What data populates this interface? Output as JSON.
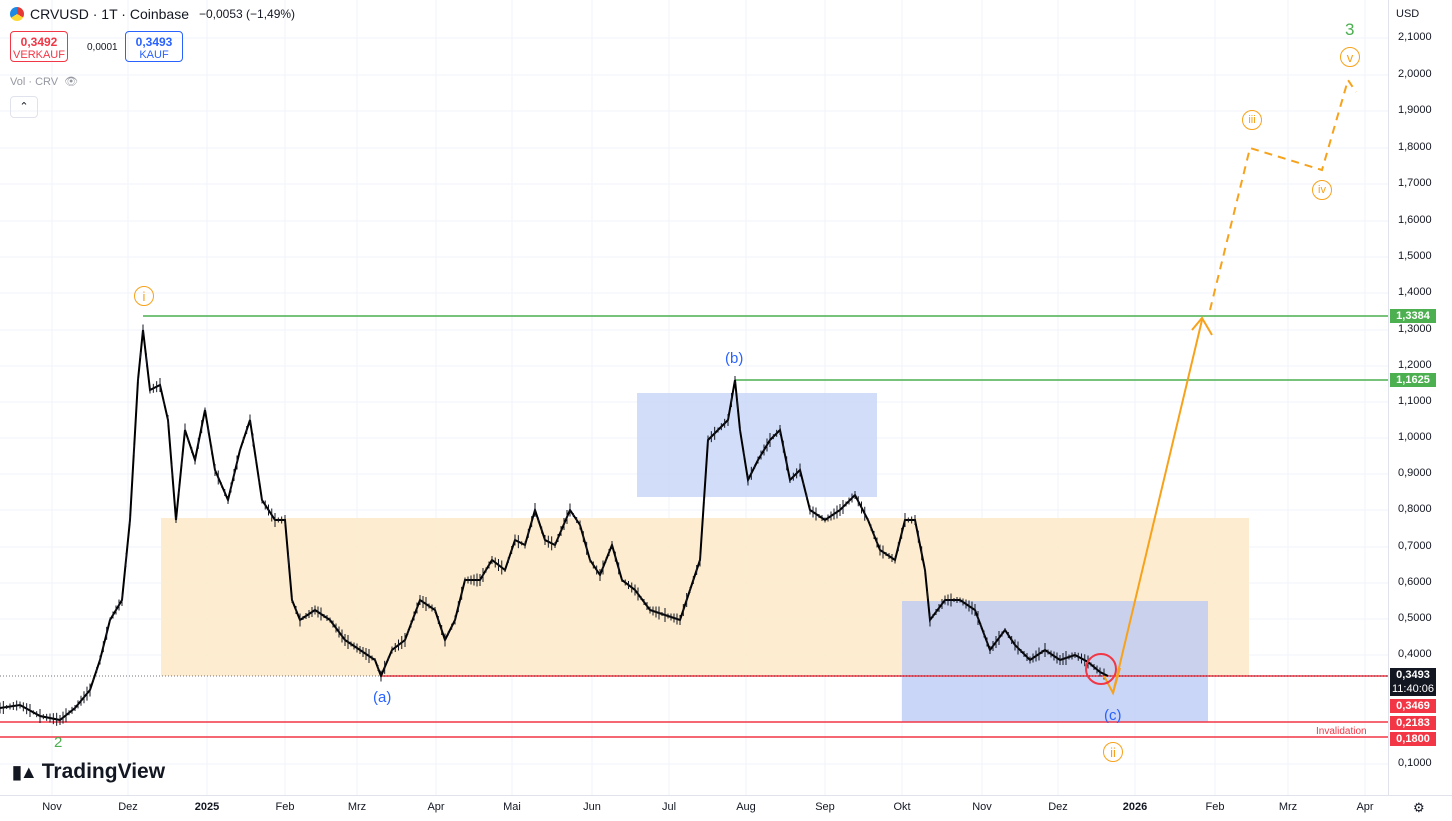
{
  "header": {
    "symbol_line": "CRVUSD · 1T · Coinbase",
    "change": "−0,0053 (−1,49%)",
    "sell_price": "0,3492",
    "sell_label": "VERKAUF",
    "spread": "0,0001",
    "buy_price": "0,3493",
    "buy_label": "KAUF",
    "volume_label": "Vol · CRV"
  },
  "axis": {
    "currency": "USD",
    "y_ticks": [
      "2,1000",
      "2,0000",
      "1,9000",
      "1,8000",
      "1,7000",
      "1,6000",
      "1,5000",
      "1,4000",
      "1,3000",
      "1,2000",
      "1,1000",
      "1,0000",
      "0,9000",
      "0,8000",
      "0,7000",
      "0,6000",
      "0,5000",
      "0,4000",
      "0,1000"
    ],
    "x_ticks": [
      "Nov",
      "Dez",
      "2025",
      "Feb",
      "Mrz",
      "Apr",
      "Mai",
      "Jun",
      "Jul",
      "Aug",
      "Sep",
      "Okt",
      "Nov",
      "Dez",
      "2026",
      "Feb",
      "Mrz",
      "Apr"
    ]
  },
  "price_tags": {
    "t1": "1,3384",
    "t2": "1,1625",
    "current": "0,3493",
    "countdown": "11:40:06",
    "t3": "0,3469",
    "t4": "0,2183",
    "t5": "0,1800"
  },
  "annotations": {
    "wave_i": "i",
    "wave_ii": "ii",
    "wave_iii": "iii",
    "wave_iv": "iv",
    "wave_v": "v",
    "wave_2": "2",
    "wave_3": "3",
    "wave_a": "(a)",
    "wave_b": "(b)",
    "wave_c": "(c)",
    "invalidation": "Invalidation"
  },
  "brand": "TradingView",
  "colors": {
    "up": "#000000",
    "green_line": "#4caf50",
    "red_line": "#f23645",
    "orange": "#f7a21b",
    "blue_label": "#2962ff",
    "orange_zone": "#fde9c8",
    "blue_zone": "#c6d4f7"
  }
}
